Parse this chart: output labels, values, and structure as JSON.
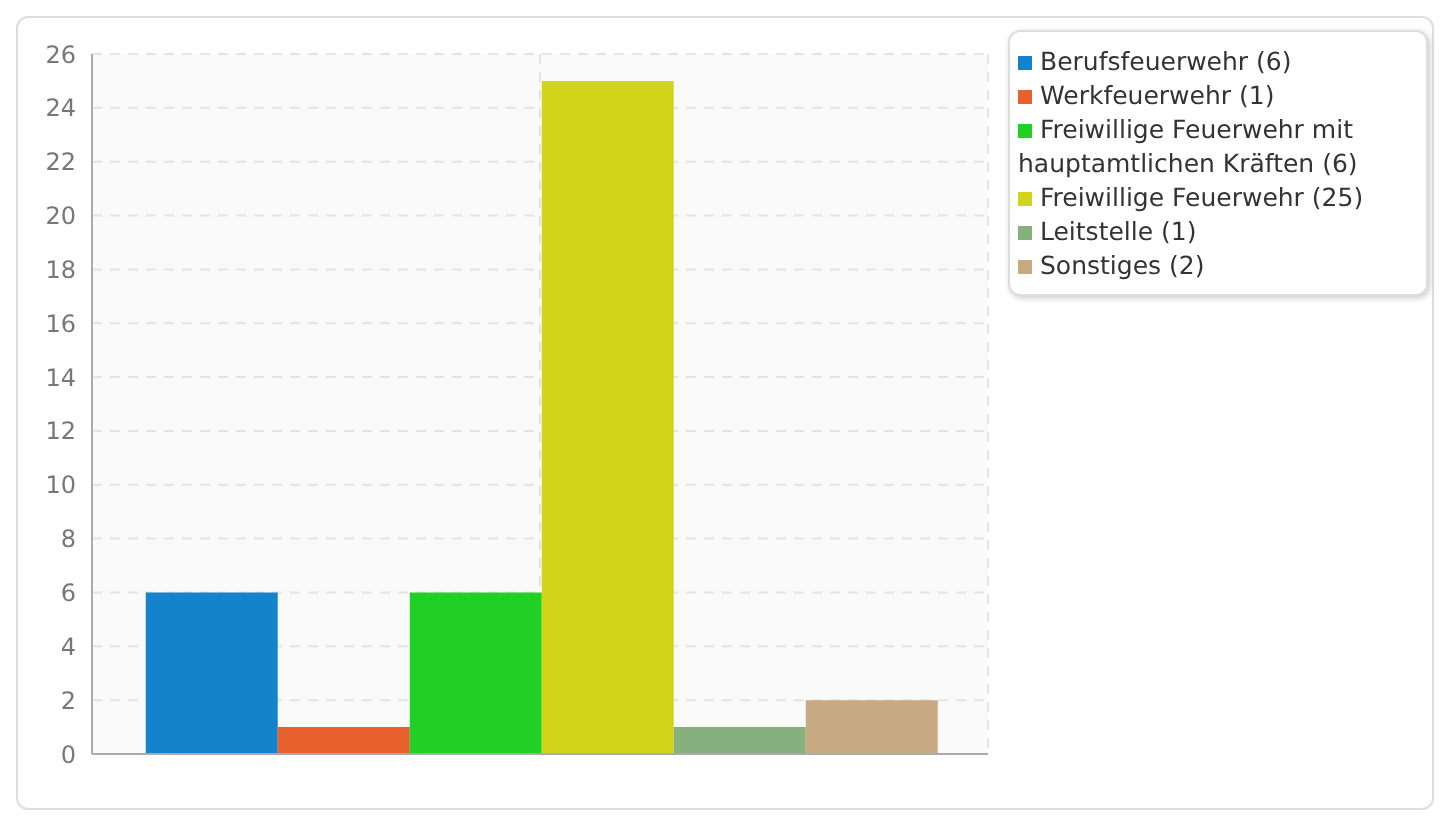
{
  "chart_data": {
    "type": "bar",
    "categories": [
      null
    ],
    "series": [
      {
        "name": "Berufsfeuerwehr (6)",
        "color": "#1582cc",
        "values": [
          6
        ]
      },
      {
        "name": "Werkfeuerwehr (1)",
        "color": "#e8602c",
        "values": [
          1
        ]
      },
      {
        "name": "Freiwillige Feuerwehr mit hauptamtlichen Kräften (6)",
        "color": "#21d024",
        "values": [
          6
        ]
      },
      {
        "name": "Freiwillige Feuerwehr (25)",
        "color": "#d2d41c",
        "values": [
          25
        ]
      },
      {
        "name": "Leitstelle (1)",
        "color": "#87b07f",
        "values": [
          1
        ]
      },
      {
        "name": "Sonstiges (2)",
        "color": "#c8aa82",
        "values": [
          2
        ]
      }
    ],
    "ylim": [
      0,
      26
    ],
    "yticks": [
      0,
      2,
      4,
      6,
      8,
      10,
      12,
      14,
      16,
      18,
      20,
      22,
      24,
      26
    ],
    "grid": true,
    "legend": "top right"
  }
}
